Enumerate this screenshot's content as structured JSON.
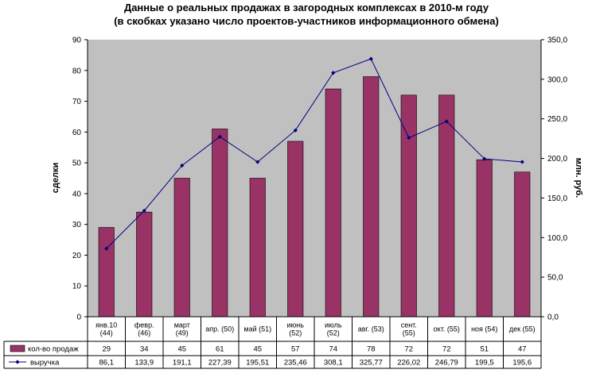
{
  "chart_data": {
    "type": "bar",
    "title": "Данные о реальных продажах в загородных комплексах в 2010-м году",
    "subtitle": "(в скобках указано число проектов-участников информационного обмена)",
    "ylabel": "сделки",
    "y2label": "млн. руб.",
    "ylim": [
      0,
      90
    ],
    "y2lim": [
      0,
      350
    ],
    "yticks": [
      "0",
      "10",
      "20",
      "30",
      "40",
      "50",
      "60",
      "70",
      "80",
      "90"
    ],
    "y2ticks": [
      "0,0",
      "50,0",
      "100,0",
      "150,0",
      "200,0",
      "250,0",
      "300,0",
      "350,0"
    ],
    "grid": false,
    "plot_background": "#c0c0c0",
    "categories": [
      [
        "янв.10",
        "(44)"
      ],
      [
        "февр.",
        "(46)"
      ],
      [
        "март",
        "(49)"
      ],
      [
        "апр. (50)"
      ],
      [
        "май (51)"
      ],
      [
        "июнь",
        "(52)"
      ],
      [
        "июль",
        "(52)"
      ],
      [
        "авг. (53)"
      ],
      [
        "сент.",
        "(55)"
      ],
      [
        "окт. (55)"
      ],
      [
        "ноя (54)"
      ],
      [
        "дек (55)"
      ]
    ],
    "series": [
      {
        "name": "кол-во продаж",
        "type": "bar",
        "axis": "left",
        "color": "#993366",
        "values": [
          29,
          34,
          45,
          61,
          45,
          57,
          74,
          78,
          72,
          72,
          51,
          47
        ],
        "labels": [
          "29",
          "34",
          "45",
          "61",
          "45",
          "57",
          "74",
          "78",
          "72",
          "72",
          "51",
          "47"
        ]
      },
      {
        "name": "выручка",
        "type": "line",
        "axis": "right",
        "color": "#000080",
        "values": [
          86.1,
          133.9,
          191.1,
          227.39,
          195.51,
          235.46,
          308.1,
          325.77,
          226.02,
          246.79,
          199.5,
          195.6
        ],
        "labels": [
          "86,1",
          "133,9",
          "191,1",
          "227,39",
          "195,51",
          "235,46",
          "308,1",
          "325,77",
          "226,02",
          "246,79",
          "199,5",
          "195,6"
        ]
      }
    ]
  }
}
